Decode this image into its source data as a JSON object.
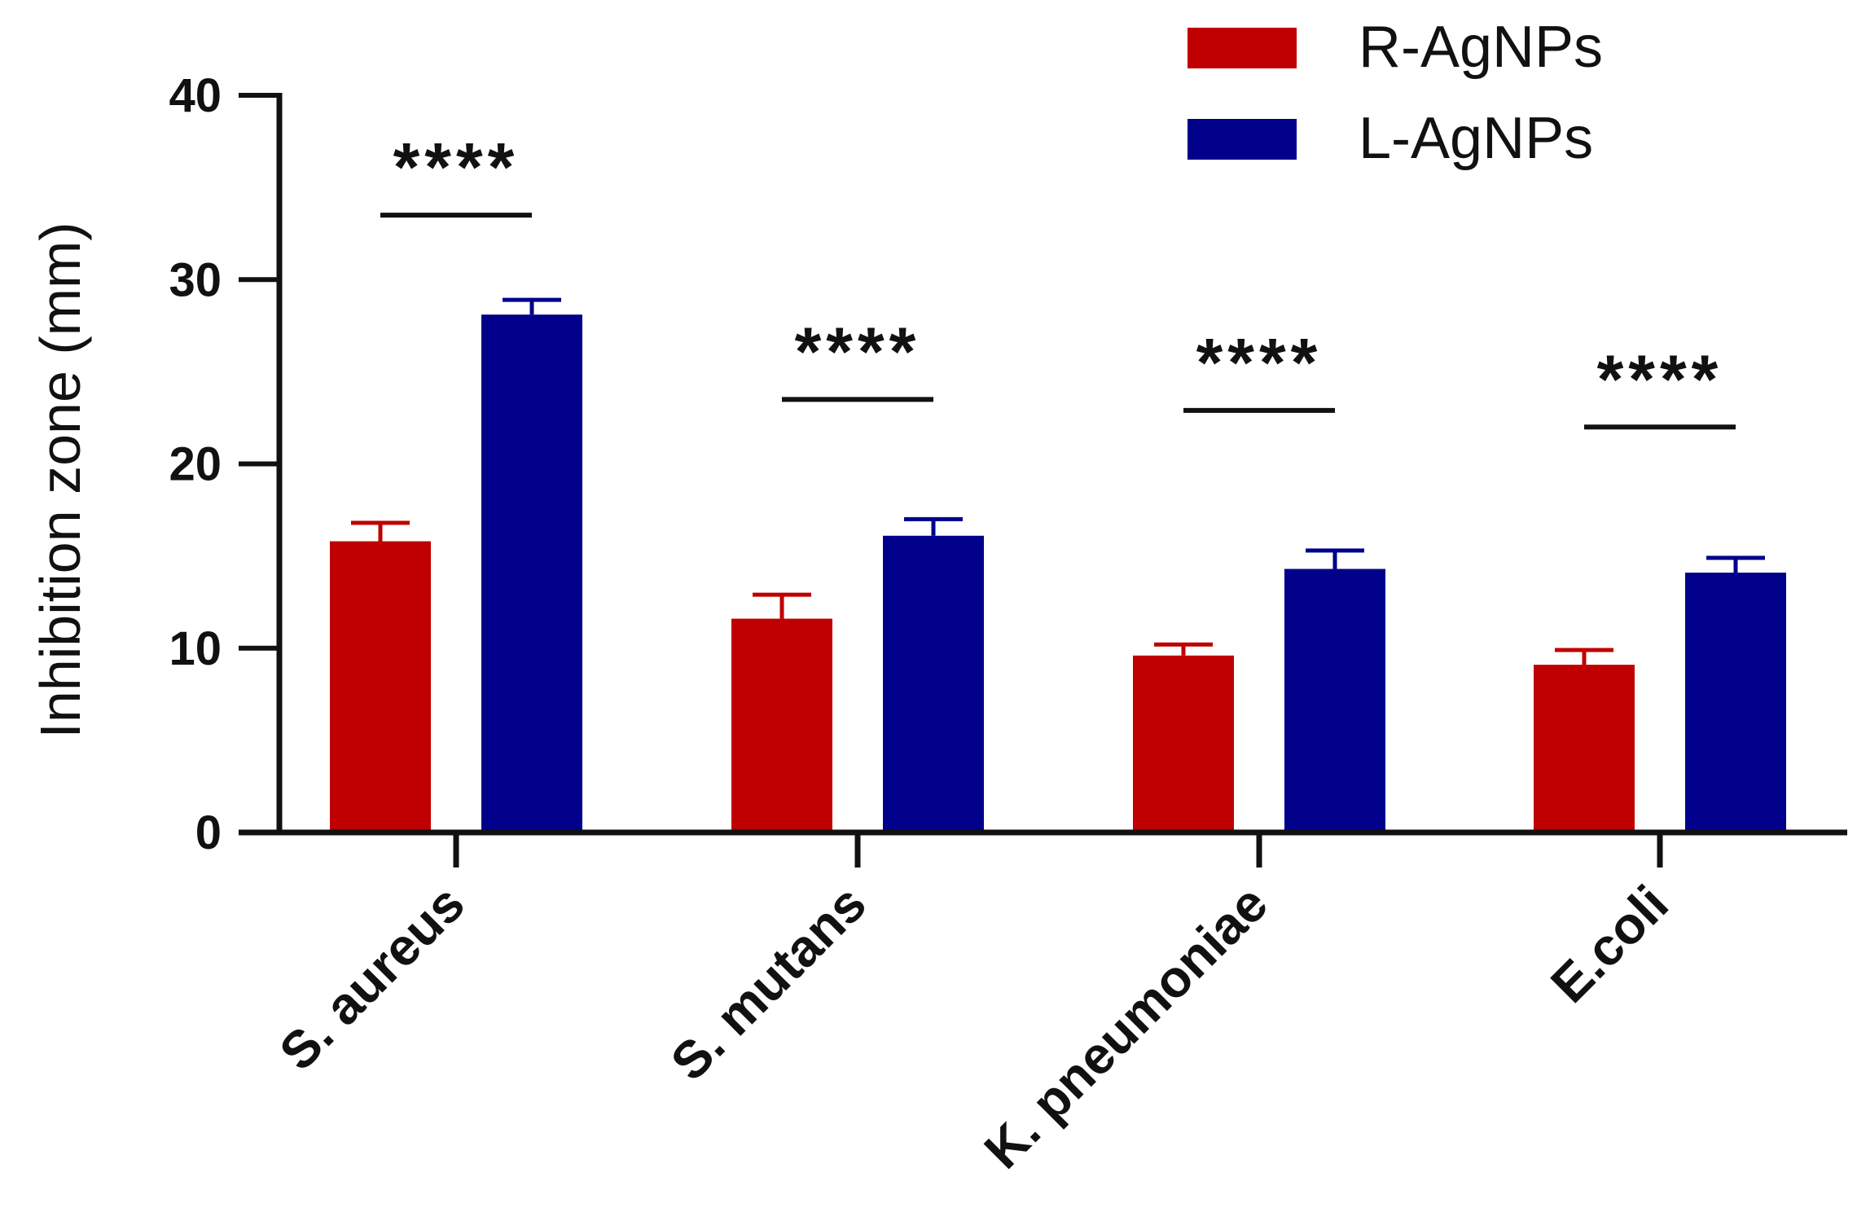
{
  "chart_data": {
    "type": "bar",
    "title": "",
    "xlabel": "",
    "ylabel": "Inhibition zone (mm)",
    "ylim": [
      0,
      40
    ],
    "yticks": [
      0,
      10,
      20,
      30,
      40
    ],
    "categories": [
      "S. aureus",
      "S. mutans",
      "K. pneumoniae",
      "E.coli"
    ],
    "series": [
      {
        "name": "R-AgNPs",
        "color": "#C00000",
        "values": [
          15.8,
          11.6,
          9.6,
          9.1
        ],
        "errors": [
          1.0,
          1.3,
          0.6,
          0.8
        ]
      },
      {
        "name": "L-AgNPs",
        "color": "#00008B",
        "values": [
          28.1,
          16.1,
          14.3,
          14.1
        ],
        "errors": [
          0.8,
          0.9,
          1.0,
          0.8
        ]
      }
    ],
    "significance": [
      {
        "category": "S. aureus",
        "label": "****",
        "y": 33.5
      },
      {
        "category": "S. mutans",
        "label": "****",
        "y": 23.5
      },
      {
        "category": "K. pneumoniae",
        "label": "****",
        "y": 22.9
      },
      {
        "category": "E.coli",
        "label": "****",
        "y": 22.0
      }
    ],
    "legend_position": "top-right",
    "grid": false
  }
}
